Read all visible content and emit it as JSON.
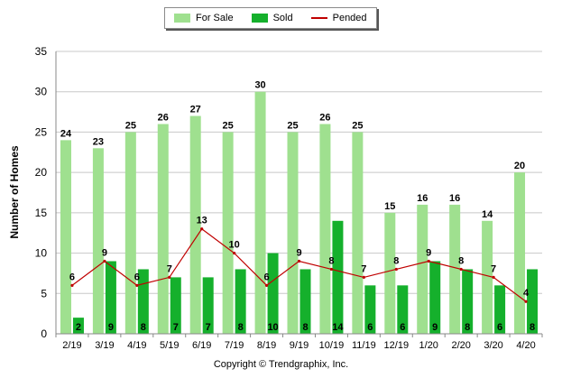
{
  "legend": {
    "items": [
      {
        "label": "For Sale",
        "color": "#9fe08f",
        "kind": "bar"
      },
      {
        "label": "Sold",
        "color": "#15b02c",
        "kind": "bar"
      },
      {
        "label": "Pended",
        "color": "#c00000",
        "kind": "line"
      }
    ]
  },
  "footer": {
    "copyright": "Copyright © Trendgraphix, Inc."
  },
  "chart_data": {
    "type": "bar",
    "title": "",
    "xlabel": "",
    "ylabel": "Number of Homes",
    "ylim": [
      0,
      35
    ],
    "yticks": [
      0,
      5,
      10,
      15,
      20,
      25,
      30,
      35
    ],
    "grid": true,
    "legend_position": "top-center",
    "categories": [
      "2/19",
      "3/19",
      "4/19",
      "5/19",
      "6/19",
      "7/19",
      "8/19",
      "9/19",
      "10/19",
      "11/19",
      "12/19",
      "1/20",
      "2/20",
      "3/20",
      "4/20"
    ],
    "series": [
      {
        "name": "For Sale",
        "type": "bar",
        "color": "#9fe08f",
        "values": [
          24,
          23,
          25,
          26,
          27,
          25,
          30,
          25,
          26,
          25,
          15,
          16,
          16,
          14,
          20
        ]
      },
      {
        "name": "Sold",
        "type": "bar",
        "color": "#15b02c",
        "values": [
          2,
          9,
          8,
          7,
          7,
          8,
          10,
          8,
          14,
          6,
          6,
          9,
          8,
          6,
          8
        ]
      },
      {
        "name": "Pended",
        "type": "line",
        "color": "#c00000",
        "values": [
          6,
          9,
          6,
          7,
          13,
          10,
          6,
          9,
          8,
          7,
          8,
          9,
          8,
          7,
          4
        ]
      }
    ]
  }
}
